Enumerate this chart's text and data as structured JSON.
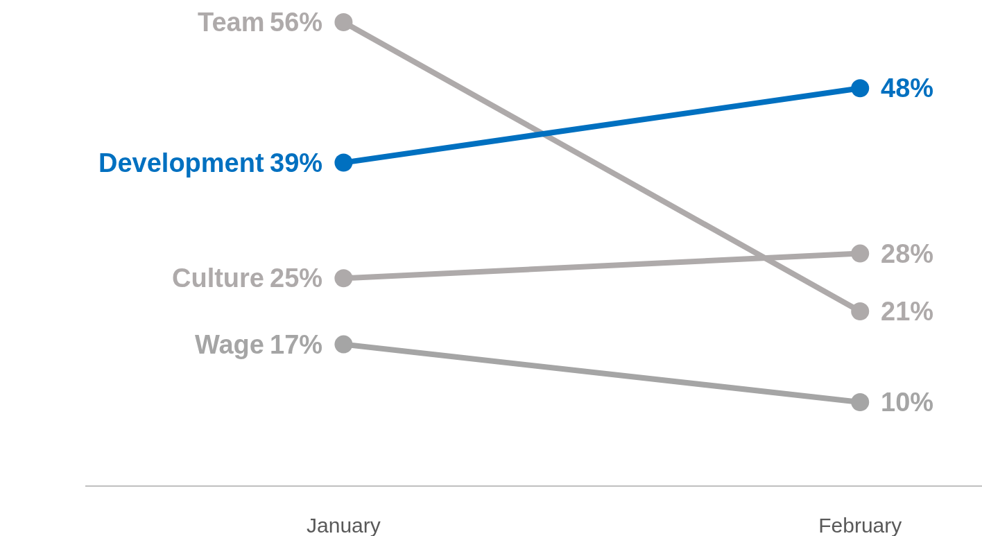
{
  "chart_data": {
    "type": "line",
    "categories": [
      "January",
      "February"
    ],
    "legend": false,
    "marker": "circle",
    "line_style": "solid",
    "series": [
      {
        "name": "Team",
        "color": "#aeaaaa",
        "values": [
          56,
          21
        ],
        "value_labels": [
          "56%",
          "21%"
        ]
      },
      {
        "name": "Development",
        "color": "#0070c0",
        "values": [
          39,
          48
        ],
        "value_labels": [
          "39%",
          "48%"
        ]
      },
      {
        "name": "Culture",
        "color": "#aeaaaa",
        "values": [
          25,
          28
        ],
        "value_labels": [
          "25%",
          "28%"
        ]
      },
      {
        "name": "Wage",
        "color": "#a5a5a5",
        "values": [
          17,
          10
        ],
        "value_labels": [
          "17%",
          "10%"
        ]
      }
    ]
  }
}
